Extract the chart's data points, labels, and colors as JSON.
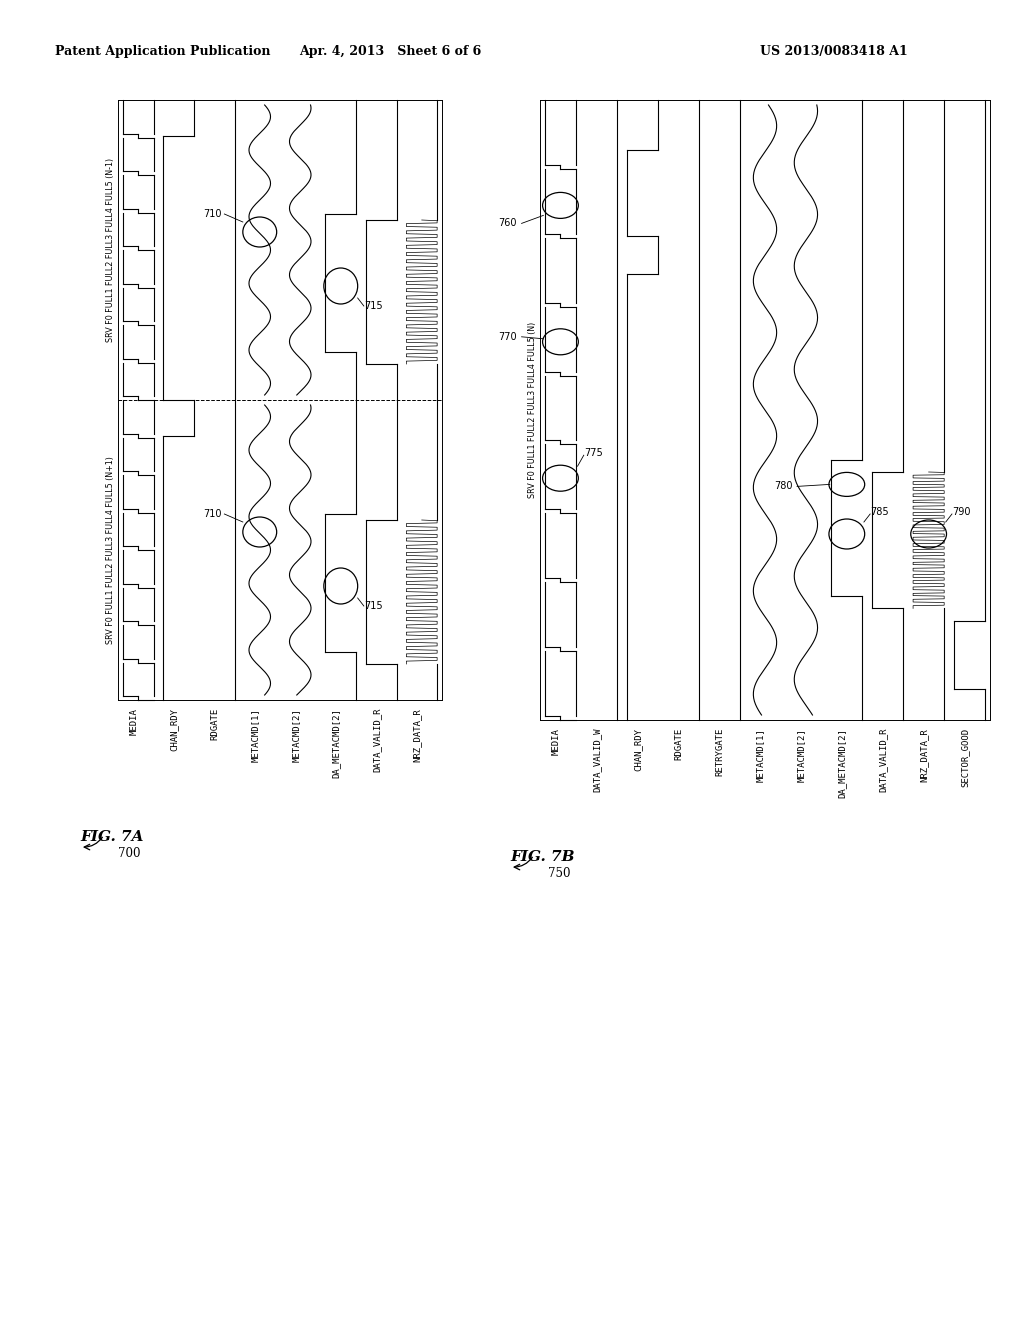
{
  "bg_color": "#ffffff",
  "header_left": "Patent Application Publication",
  "header_mid": "Apr. 4, 2013   Sheet 6 of 6",
  "header_right": "US 2013/0083418 A1",
  "fig7a_signals": [
    "MEDIA",
    "CHAN_RDY",
    "RDGATE",
    "METACMD[1]",
    "METACMD[2]",
    "DA_METACMD[2]",
    "DATA_VALID_R",
    "NRZ_DATA_R"
  ],
  "fig7a_track_n1": "SRV F0 FULL1 FULL2 FULL3 FULL4 FULL5 (N-1)",
  "fig7a_track_n1p": "SRV F0 FULL1 FULL2 FULL3 FULL4 FULL5 (N+1)",
  "fig7b_signals": [
    "MEDIA",
    "DATA_VALID_W",
    "CHAN_RDY",
    "RDGATE",
    "RETRYGATE",
    "METACMD[1]",
    "METACMD[2]",
    "DA_METACMD[2]",
    "DATA_VALID_R",
    "NRZ_DATA_R",
    "SECTOR_GOOD"
  ],
  "fig7b_track_n": "SRV F0 FULL1 FULL2 FULL3 FULL4 FULL5 (N)"
}
